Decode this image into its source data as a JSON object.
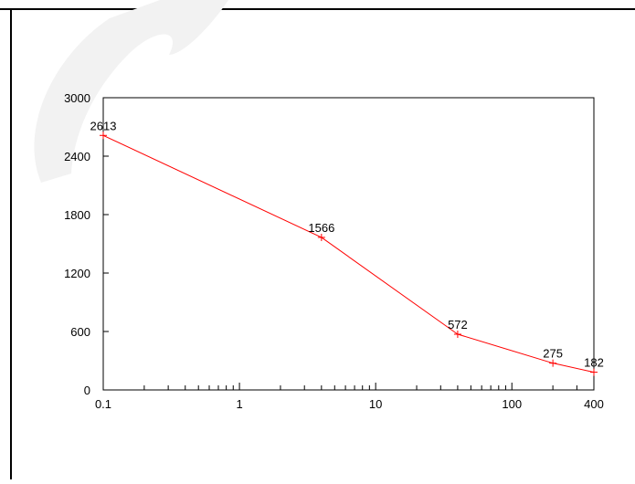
{
  "chart_data": {
    "type": "line",
    "title": "",
    "xlabel": "",
    "ylabel": "",
    "x_scale": "log",
    "xlim": [
      0.1,
      400
    ],
    "ylim": [
      0,
      3000
    ],
    "grid": false,
    "line_color": "#ff0000",
    "x_tick_labels": [
      {
        "value": 0.1,
        "label": "0.1"
      },
      {
        "value": 1,
        "label": "1"
      },
      {
        "value": 10,
        "label": "10"
      },
      {
        "value": 100,
        "label": "100"
      },
      {
        "value": 400,
        "label": "400"
      }
    ],
    "y_tick_labels": [
      {
        "value": 0,
        "label": "0"
      },
      {
        "value": 600,
        "label": "600"
      },
      {
        "value": 1200,
        "label": "1200"
      },
      {
        "value": 1800,
        "label": "1800"
      },
      {
        "value": 2400,
        "label": "2400"
      },
      {
        "value": 3000,
        "label": "3000"
      }
    ],
    "series": [
      {
        "points": [
          {
            "x": 0.1,
            "y": 2613,
            "label": "2613"
          },
          {
            "x": 4,
            "y": 1566,
            "label": "1566"
          },
          {
            "x": 40,
            "y": 572,
            "label": "572"
          },
          {
            "x": 200,
            "y": 275,
            "label": "275"
          },
          {
            "x": 400,
            "y": 182,
            "label": "182"
          }
        ]
      }
    ]
  }
}
